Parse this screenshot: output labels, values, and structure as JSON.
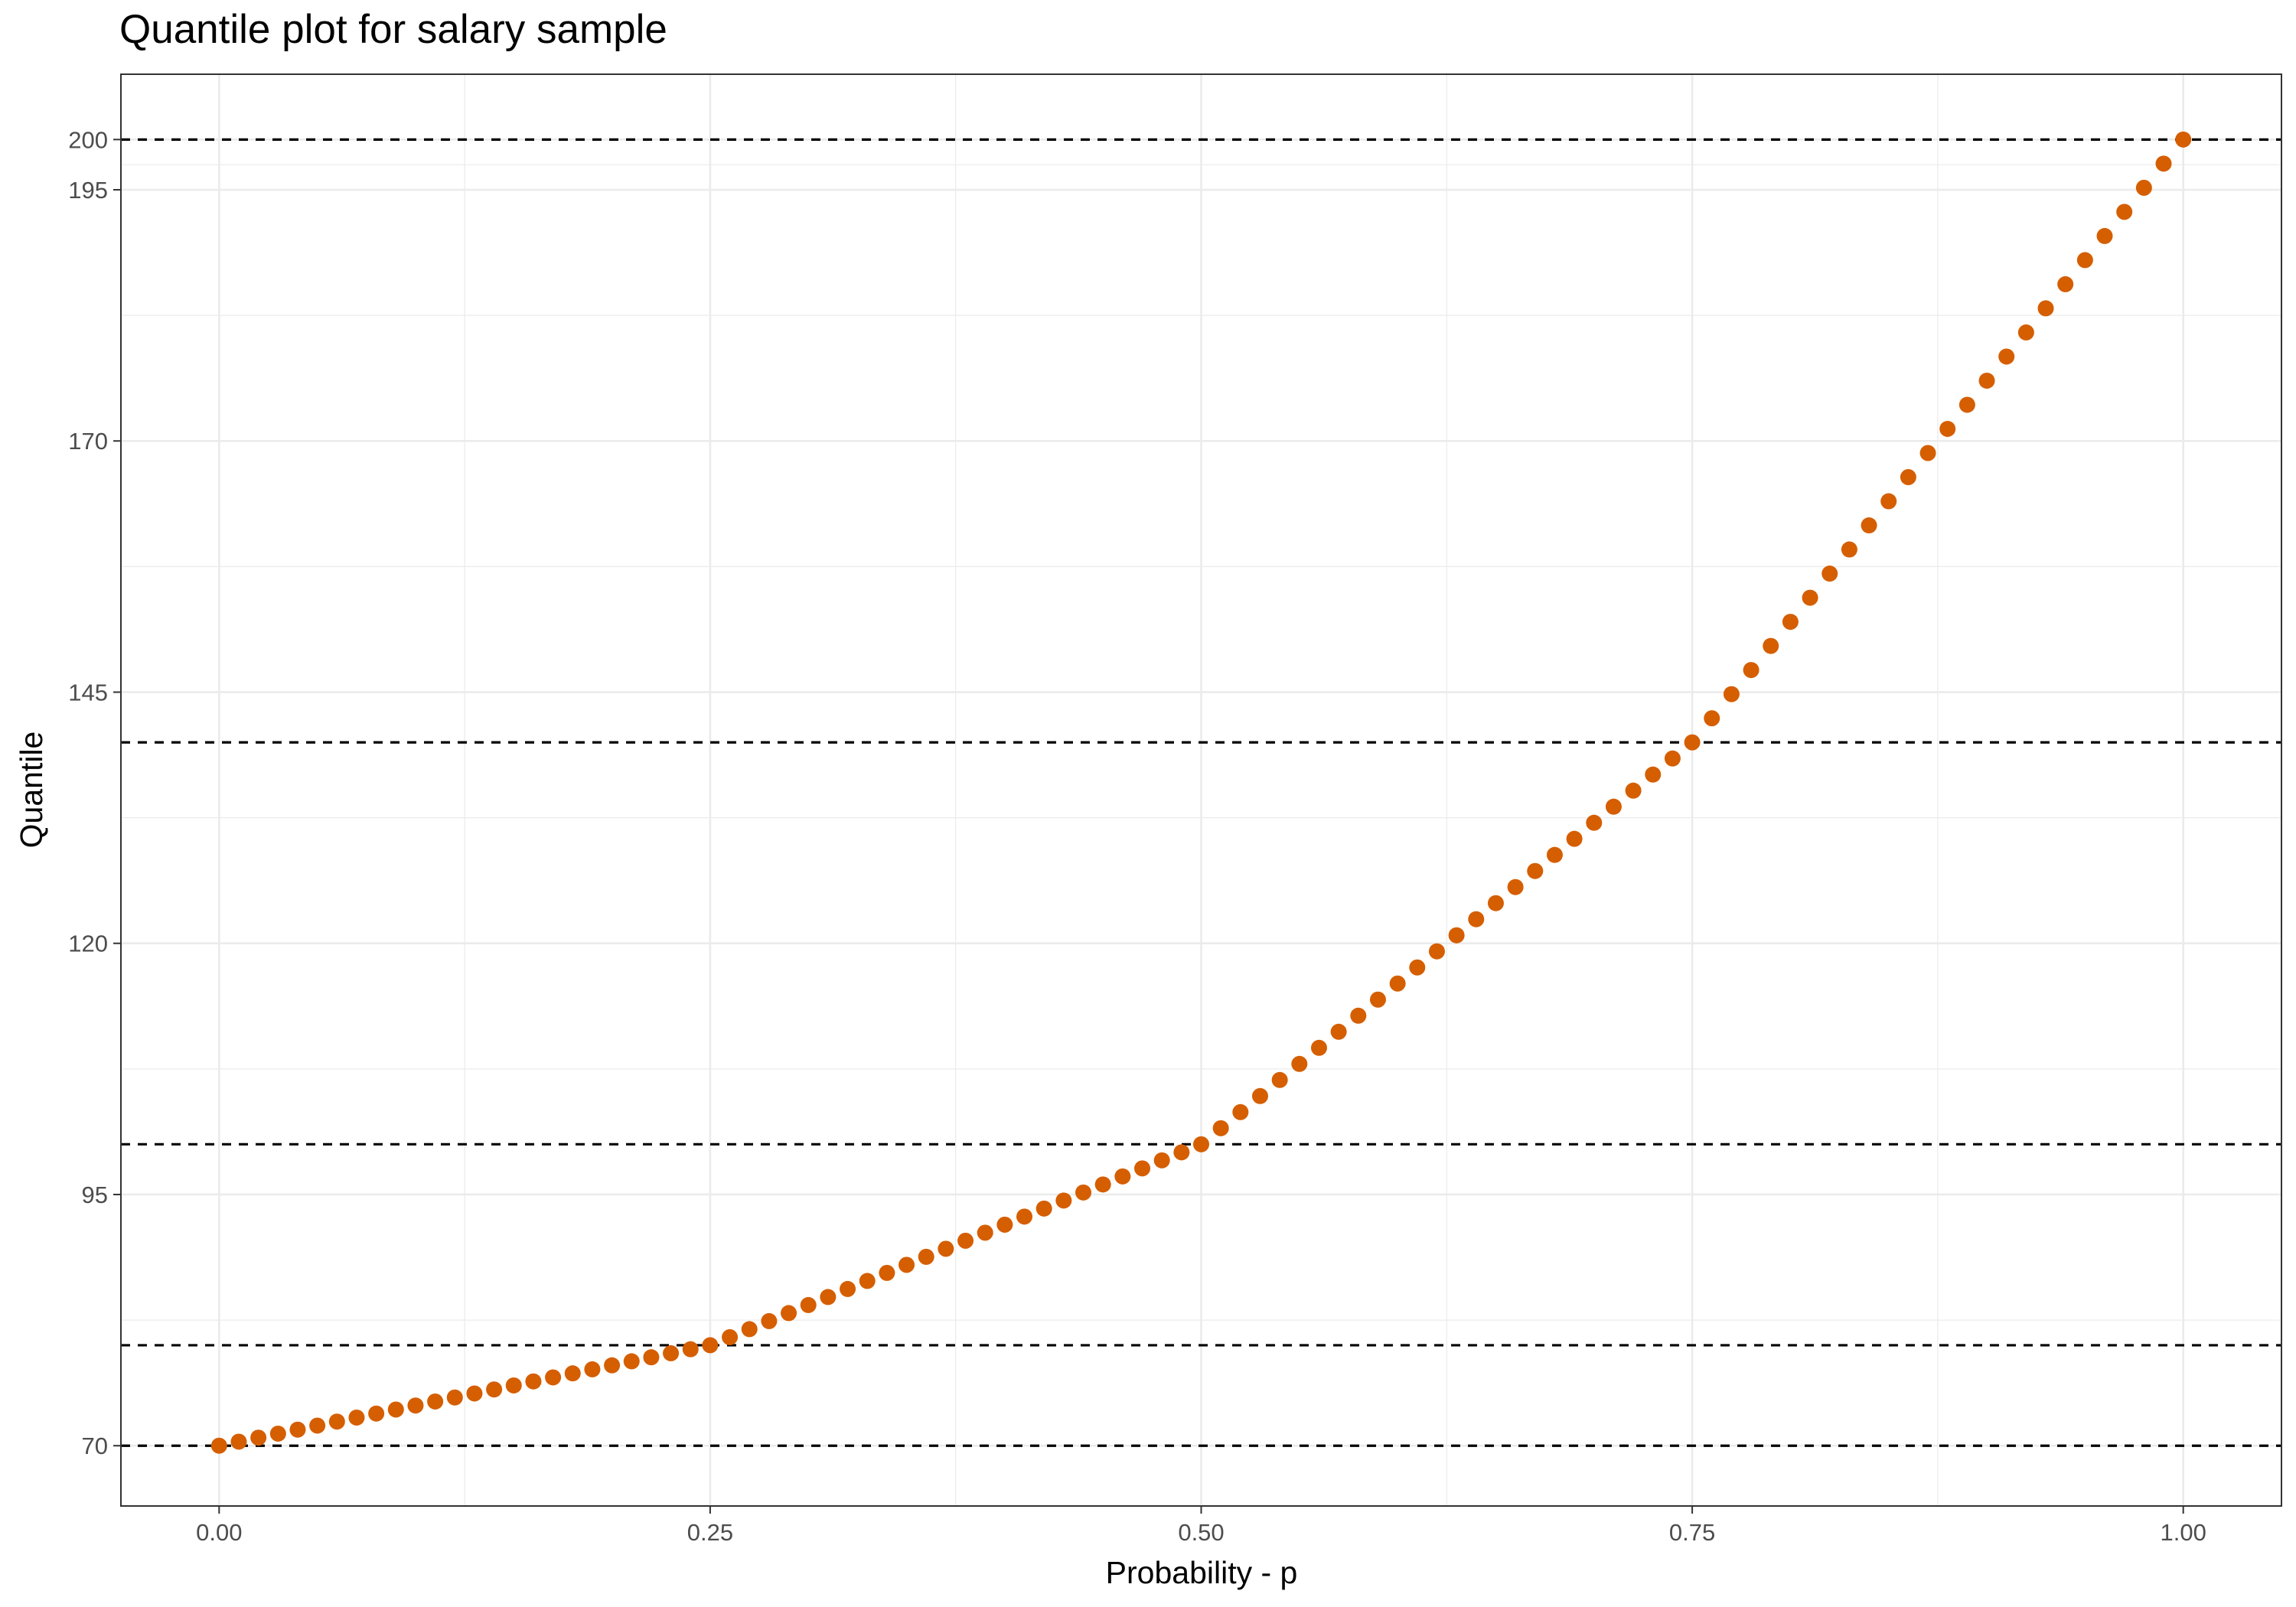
{
  "chart_data": {
    "type": "scatter",
    "title": "Quantile plot for salary sample",
    "xlabel": "Probability - p",
    "ylabel": "Quantile",
    "xlim": [
      -0.05,
      1.05
    ],
    "ylim": [
      64,
      206.5
    ],
    "x_ticks": [
      0,
      0.25,
      0.5,
      0.75,
      1
    ],
    "x_tick_labels": [
      "0.00",
      "0.25",
      "0.50",
      "0.75",
      "1.00"
    ],
    "y_ticks": [
      70,
      95,
      120,
      145,
      170,
      195,
      200
    ],
    "y_tick_labels": [
      "70",
      "95",
      "120",
      "145",
      "170",
      "195",
      "200"
    ],
    "grid": true,
    "point_color": "#D55E00",
    "reference_line_color": "#000000",
    "reference_lines_y": [
      70,
      80,
      100,
      140,
      200
    ],
    "quantile_anchors": [
      {
        "p": 0,
        "q": 70
      },
      {
        "p": 0.25,
        "q": 80
      },
      {
        "p": 0.5,
        "q": 100
      },
      {
        "p": 0.75,
        "q": 140
      },
      {
        "p": 1,
        "q": 200
      }
    ],
    "series": [
      {
        "x": [
          0,
          0.01,
          0.02,
          0.03,
          0.04,
          0.05,
          0.06,
          0.07,
          0.08,
          0.09,
          0.1,
          0.11,
          0.12,
          0.13,
          0.14,
          0.15,
          0.16,
          0.17,
          0.18,
          0.19,
          0.2,
          0.21,
          0.22,
          0.23,
          0.24,
          0.25,
          0.26,
          0.27,
          0.28,
          0.29,
          0.3,
          0.31,
          0.32,
          0.33,
          0.34,
          0.35,
          0.36,
          0.37,
          0.38,
          0.39,
          0.4,
          0.41,
          0.42,
          0.43,
          0.44,
          0.45,
          0.46,
          0.47,
          0.48,
          0.49,
          0.5,
          0.51,
          0.52,
          0.53,
          0.54,
          0.55,
          0.56,
          0.57,
          0.58,
          0.59,
          0.6,
          0.61,
          0.62,
          0.63,
          0.64,
          0.65,
          0.66,
          0.67,
          0.68,
          0.69,
          0.7,
          0.71,
          0.72,
          0.73,
          0.74,
          0.75,
          0.76,
          0.77,
          0.78,
          0.79,
          0.8,
          0.81,
          0.82,
          0.83,
          0.84,
          0.85,
          0.86,
          0.87,
          0.88,
          0.89,
          0.9,
          0.91,
          0.92,
          0.93,
          0.94,
          0.95,
          0.96,
          0.97,
          0.98,
          0.99,
          1
        ],
        "y": [
          70,
          70.4,
          70.8,
          71.2,
          71.6,
          72,
          72.4,
          72.8,
          73.2,
          73.6,
          74,
          74.4,
          74.8,
          75.2,
          75.6,
          76,
          76.4,
          76.8,
          77.2,
          77.6,
          78,
          78.4,
          78.8,
          79.2,
          79.6,
          80,
          80.8,
          81.6,
          82.4,
          83.2,
          84,
          84.8,
          85.6,
          86.4,
          87.2,
          88,
          88.8,
          89.6,
          90.4,
          91.2,
          92,
          92.8,
          93.6,
          94.4,
          95.2,
          96,
          96.8,
          97.6,
          98.4,
          99.2,
          100,
          101.6,
          103.2,
          104.8,
          106.4,
          108,
          109.6,
          111.2,
          112.8,
          114.4,
          116,
          117.6,
          119.2,
          120.8,
          122.4,
          124,
          125.6,
          127.2,
          128.8,
          130.4,
          132,
          133.6,
          135.2,
          136.8,
          138.4,
          140,
          142.4,
          144.8,
          147.2,
          149.6,
          152,
          154.4,
          156.8,
          159.2,
          161.6,
          164,
          166.4,
          168.8,
          171.2,
          173.6,
          176,
          178.4,
          180.8,
          183.2,
          185.6,
          188,
          190.4,
          192.8,
          195.2,
          197.6,
          200
        ]
      }
    ]
  }
}
